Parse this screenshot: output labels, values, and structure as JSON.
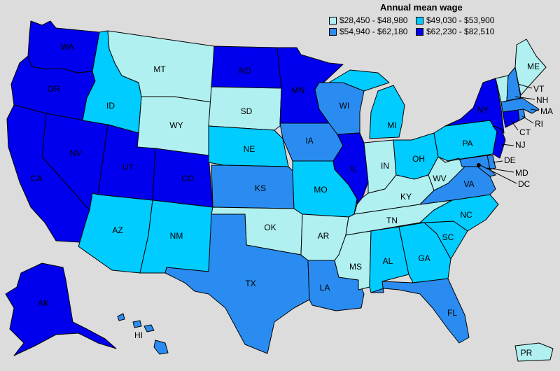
{
  "legend": {
    "title": "Annual mean wage",
    "items": [
      {
        "range": "$28,450 - $48,980",
        "color": "#b0f0f0"
      },
      {
        "range": "$49,030 - $53,900",
        "color": "#00ccff"
      },
      {
        "range": "$54,940 - $62,180",
        "color": "#2a8cf0"
      },
      {
        "range": "$62,230 - $82,510",
        "color": "#0000ee"
      }
    ]
  },
  "states": {
    "WA": {
      "label": "WA",
      "tier": 3
    },
    "OR": {
      "label": "OR",
      "tier": 3
    },
    "CA": {
      "label": "CA",
      "tier": 3
    },
    "NV": {
      "label": "NV",
      "tier": 3
    },
    "ID": {
      "label": "ID",
      "tier": 1
    },
    "MT": {
      "label": "MT",
      "tier": 0
    },
    "WY": {
      "label": "WY",
      "tier": 0
    },
    "UT": {
      "label": "UT",
      "tier": 3
    },
    "CO": {
      "label": "CO",
      "tier": 3
    },
    "AZ": {
      "label": "AZ",
      "tier": 1
    },
    "NM": {
      "label": "NM",
      "tier": 1
    },
    "ND": {
      "label": "ND",
      "tier": 3
    },
    "SD": {
      "label": "SD",
      "tier": 0
    },
    "NE": {
      "label": "NE",
      "tier": 1
    },
    "KS": {
      "label": "KS",
      "tier": 2
    },
    "OK": {
      "label": "OK",
      "tier": 0
    },
    "TX": {
      "label": "TX",
      "tier": 2
    },
    "MN": {
      "label": "MN",
      "tier": 3
    },
    "IA": {
      "label": "IA",
      "tier": 2
    },
    "MO": {
      "label": "MO",
      "tier": 1
    },
    "AR": {
      "label": "AR",
      "tier": 0
    },
    "LA": {
      "label": "LA",
      "tier": 2
    },
    "WI": {
      "label": "WI",
      "tier": 2
    },
    "IL": {
      "label": "IL",
      "tier": 3
    },
    "MI": {
      "label": "MI",
      "tier": 1
    },
    "IN": {
      "label": "IN",
      "tier": 0
    },
    "OH": {
      "label": "OH",
      "tier": 1
    },
    "KY": {
      "label": "KY",
      "tier": 0
    },
    "TN": {
      "label": "TN",
      "tier": 0
    },
    "MS": {
      "label": "MS",
      "tier": 0
    },
    "AL": {
      "label": "AL",
      "tier": 1
    },
    "GA": {
      "label": "GA",
      "tier": 1
    },
    "FL": {
      "label": "FL",
      "tier": 2
    },
    "SC": {
      "label": "SC",
      "tier": 1
    },
    "NC": {
      "label": "NC",
      "tier": 1
    },
    "VA": {
      "label": "VA",
      "tier": 2
    },
    "WV": {
      "label": "WV",
      "tier": 0
    },
    "PA": {
      "label": "PA",
      "tier": 1
    },
    "NY": {
      "label": "NY",
      "tier": 3
    },
    "NJ": {
      "label": "NJ",
      "tier": 3
    },
    "DE": {
      "label": "DE",
      "tier": 2
    },
    "MD": {
      "label": "MD",
      "tier": 2
    },
    "DC": {
      "label": "DC",
      "tier": 3
    },
    "CT": {
      "label": "CT",
      "tier": 3
    },
    "RI": {
      "label": "RI",
      "tier": 2
    },
    "MA": {
      "label": "MA",
      "tier": 2
    },
    "VT": {
      "label": "VT",
      "tier": 0
    },
    "NH": {
      "label": "NH",
      "tier": 2
    },
    "ME": {
      "label": "ME",
      "tier": 0
    },
    "AK": {
      "label": "AK",
      "tier": 3
    },
    "HI": {
      "label": "HI",
      "tier": 2
    },
    "PR": {
      "label": "PR",
      "tier": 0
    }
  }
}
